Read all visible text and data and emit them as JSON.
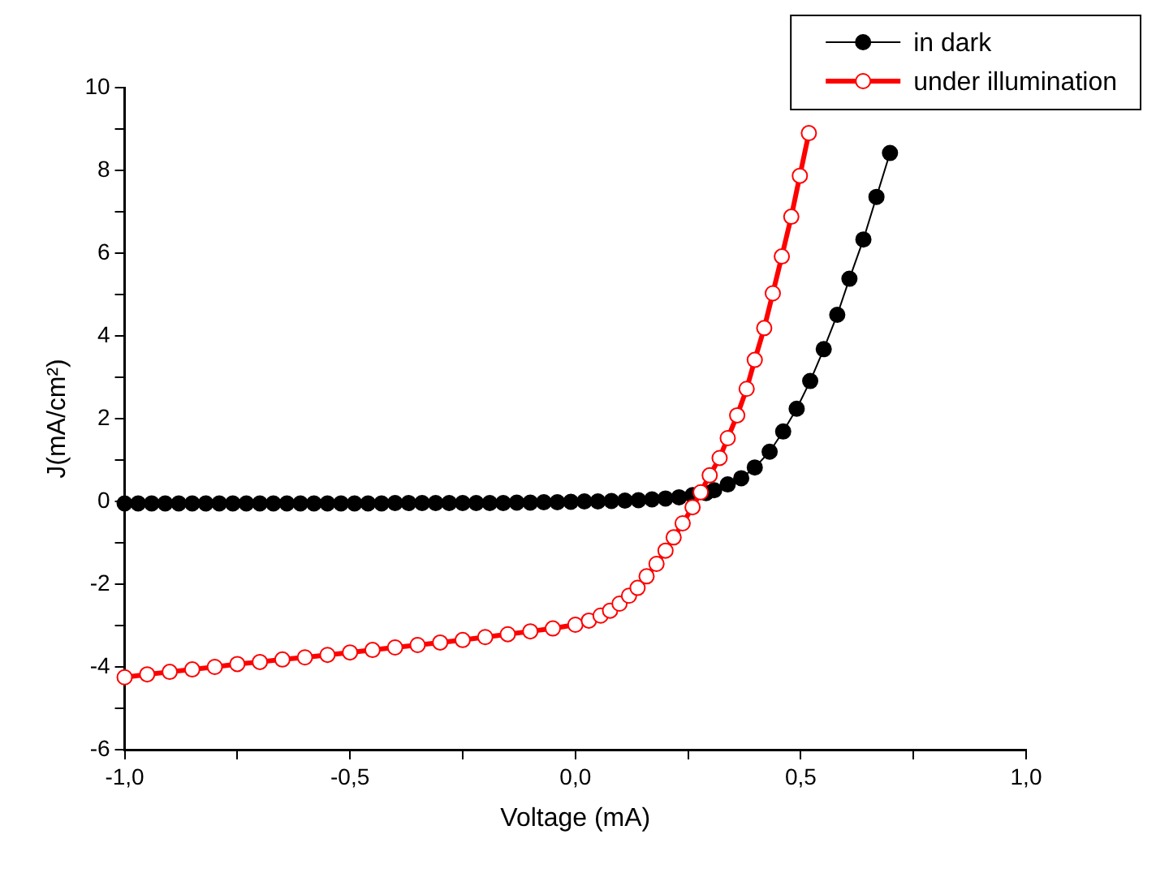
{
  "chart_data": {
    "type": "line",
    "xlabel": "Voltage (mA)",
    "ylabel": "J(mA/cm²)",
    "xlim": [
      -1,
      1
    ],
    "xticks": [
      {
        "value": -1,
        "label": "-1,0"
      },
      {
        "value": -0.75,
        "label": null
      },
      {
        "value": -0.5,
        "label": "-0,5"
      },
      {
        "value": -0.25,
        "label": null
      },
      {
        "value": 0,
        "label": "0,0"
      },
      {
        "value": 0.25,
        "label": null
      },
      {
        "value": 0.5,
        "label": "0,5"
      },
      {
        "value": 0.75,
        "label": null
      },
      {
        "value": 1,
        "label": "1,0"
      }
    ],
    "ylim": [
      -6,
      10
    ],
    "yticks": [
      -6,
      {
        "value": -5,
        "label": null
      },
      -4,
      {
        "value": -3,
        "label": null
      },
      -2,
      {
        "value": -1,
        "label": null
      },
      0,
      {
        "value": 1,
        "label": null
      },
      2,
      {
        "value": 3,
        "label": null
      },
      4,
      {
        "value": 5,
        "label": null
      },
      6,
      {
        "value": 7,
        "label": null
      },
      8,
      {
        "value": 9,
        "label": null
      },
      10
    ],
    "legend": "top right",
    "grid": false,
    "line_style": "solid",
    "series": [
      {
        "name": "in dark",
        "color": "#000000",
        "marker": "circle",
        "x": [
          -1.0,
          -0.97,
          -0.94,
          -0.91,
          -0.88,
          -0.85,
          -0.82,
          -0.79,
          -0.76,
          -0.73,
          -0.7,
          -0.67,
          -0.64,
          -0.61,
          -0.58,
          -0.55,
          -0.52,
          -0.49,
          -0.46,
          -0.43,
          -0.4,
          -0.37,
          -0.34,
          -0.31,
          -0.28,
          -0.25,
          -0.22,
          -0.19,
          -0.16,
          -0.13,
          -0.1,
          -0.07,
          -0.04,
          -0.01,
          0.02,
          0.05,
          0.08,
          0.11,
          0.14,
          0.17,
          0.2,
          0.23,
          0.26,
          0.29,
          0.308,
          0.338,
          0.368,
          0.398,
          0.431,
          0.461,
          0.491,
          0.521,
          0.551,
          0.581,
          0.608,
          0.639,
          0.668,
          0.698
        ],
        "values": [
          -0.05,
          -0.05,
          -0.05,
          -0.05,
          -0.05,
          -0.05,
          -0.05,
          -0.05,
          -0.05,
          -0.05,
          -0.05,
          -0.05,
          -0.05,
          -0.05,
          -0.05,
          -0.05,
          -0.05,
          -0.05,
          -0.05,
          -0.05,
          -0.04,
          -0.04,
          -0.04,
          -0.04,
          -0.04,
          -0.04,
          -0.04,
          -0.04,
          -0.04,
          -0.03,
          -0.03,
          -0.02,
          -0.02,
          -0.01,
          0.0,
          0.0,
          0.01,
          0.02,
          0.03,
          0.05,
          0.07,
          0.1,
          0.15,
          0.2,
          0.27,
          0.41,
          0.56,
          0.82,
          1.2,
          1.69,
          2.24,
          2.91,
          3.68,
          4.51,
          5.38,
          6.33,
          7.36,
          8.42
        ]
      },
      {
        "name": "under illumination",
        "color": "#ff0000",
        "marker": "circle",
        "x": [
          -1.0,
          -0.95,
          -0.9,
          -0.85,
          -0.8,
          -0.75,
          -0.7,
          -0.65,
          -0.6,
          -0.55,
          -0.5,
          -0.45,
          -0.4,
          -0.35,
          -0.3,
          -0.25,
          -0.2,
          -0.15,
          -0.1,
          -0.05,
          0.0,
          0.03,
          0.056,
          0.077,
          0.098,
          0.119,
          0.138,
          0.158,
          0.18,
          0.2,
          0.218,
          0.238,
          0.26,
          0.278,
          0.298,
          0.32,
          0.338,
          0.359,
          0.38,
          0.398,
          0.419,
          0.438,
          0.458,
          0.479,
          0.498,
          0.518
        ],
        "values": [
          -4.25,
          -4.18,
          -4.12,
          -4.06,
          -4.0,
          -3.93,
          -3.88,
          -3.82,
          -3.77,
          -3.71,
          -3.65,
          -3.59,
          -3.53,
          -3.47,
          -3.41,
          -3.35,
          -3.28,
          -3.21,
          -3.14,
          -3.07,
          -2.98,
          -2.88,
          -2.76,
          -2.64,
          -2.47,
          -2.28,
          -2.09,
          -1.81,
          -1.51,
          -1.19,
          -0.87,
          -0.53,
          -0.14,
          0.22,
          0.63,
          1.05,
          1.53,
          2.08,
          2.72,
          3.42,
          4.19,
          5.03,
          5.92,
          6.88,
          7.87,
          8.9
        ]
      }
    ]
  }
}
